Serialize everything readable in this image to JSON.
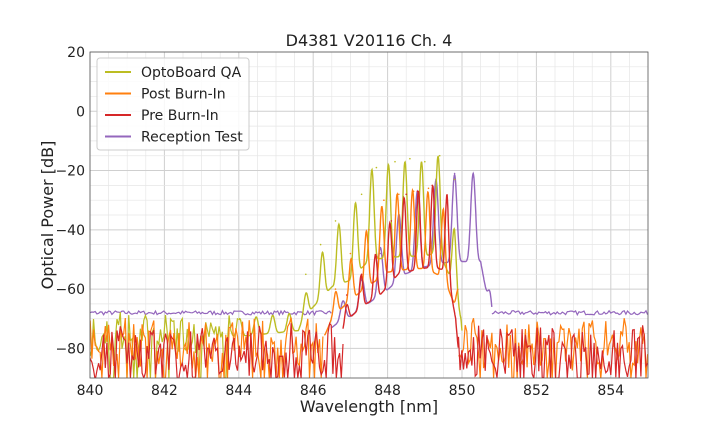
{
  "chart_data": {
    "type": "line",
    "title": "D4381 V20116 Ch. 4",
    "xlabel": "Wavelength [nm]",
    "ylabel": "Optical Power [dB]",
    "xlim": [
      840,
      855
    ],
    "ylim": [
      -90,
      20
    ],
    "xticks": [
      840,
      842,
      844,
      846,
      848,
      850,
      852,
      854
    ],
    "yticks": [
      20,
      0,
      -20,
      -40,
      -60,
      -80
    ],
    "grid": true,
    "legend_position": "top-left",
    "series": [
      {
        "name": "OptoBoard QA",
        "color": "#bcbd22",
        "noise_floor": -70,
        "noise_range": [
          839.6,
          850.0
        ],
        "peaks": [
          [
            845.8,
            -55
          ],
          [
            846.2,
            -45
          ],
          [
            846.6,
            -37
          ],
          [
            847.3,
            -28
          ],
          [
            847.7,
            -19
          ],
          [
            848.2,
            -17
          ],
          [
            848.6,
            -16
          ],
          [
            849.0,
            -17
          ],
          [
            849.4,
            -15
          ],
          [
            849.8,
            -23
          ]
        ],
        "x": [
          840,
          844,
          845.6,
          846.0,
          846.5,
          847.0,
          847.5,
          848.0,
          848.5,
          849.0,
          849.4,
          849.8,
          850.0,
          850.5
        ],
        "y": [
          -70,
          -70,
          -68,
          -55,
          -40,
          -35,
          -20,
          -18,
          -17,
          -17,
          -15,
          -40,
          -68,
          -71
        ]
      },
      {
        "name": "Post Burn-In",
        "color": "#ff7f0e",
        "noise_floor": -72,
        "noise_range": [
          839.6,
          855.0
        ],
        "peaks": [
          [
            846.6,
            -60
          ],
          [
            847.0,
            -48
          ],
          [
            847.5,
            -40
          ],
          [
            847.9,
            -30
          ],
          [
            848.3,
            -28
          ],
          [
            848.7,
            -27
          ],
          [
            849.1,
            -26
          ],
          [
            849.5,
            -35
          ]
        ],
        "x": [
          840,
          846.3,
          846.8,
          847.3,
          848.0,
          848.5,
          849.0,
          849.5,
          849.9,
          850.3
        ],
        "y": [
          -72,
          -70,
          -55,
          -43,
          -29,
          -27,
          -26,
          -33,
          -60,
          -72
        ]
      },
      {
        "name": "Pre Burn-In",
        "color": "#d62728",
        "noise_floor": -74,
        "noise_range": [
          839.6,
          855.0
        ],
        "peaks": [
          [
            846.9,
            -62
          ],
          [
            847.3,
            -55
          ],
          [
            847.7,
            -49
          ],
          [
            848.1,
            -37
          ],
          [
            848.5,
            -28
          ],
          [
            848.8,
            -27
          ],
          [
            849.2,
            -25
          ],
          [
            849.6,
            -30
          ]
        ],
        "x": [
          840,
          846.8,
          847.3,
          847.8,
          848.3,
          848.8,
          849.2,
          849.6,
          849.9,
          850.1
        ],
        "y": [
          -74,
          -68,
          -55,
          -46,
          -30,
          -27,
          -25,
          -28,
          -75,
          -90
        ]
      },
      {
        "name": "Reception Test",
        "color": "#9467bd",
        "noise_floor": -68,
        "noise_range": [
          839.6,
          855.0
        ],
        "peaks": [
          [
            846.8,
            -66
          ],
          [
            847.3,
            -57
          ],
          [
            847.8,
            -48
          ],
          [
            848.3,
            -36
          ],
          [
            848.8,
            -28
          ],
          [
            849.3,
            -23
          ],
          [
            849.8,
            -21
          ],
          [
            850.3,
            -21
          ]
        ],
        "x": [
          840,
          846.5,
          847.0,
          847.5,
          848.0,
          848.5,
          849.0,
          849.5,
          850.0,
          850.5,
          850.8,
          855
        ],
        "y": [
          -68,
          -67,
          -62,
          -52,
          -42,
          -30,
          -25,
          -22,
          -21,
          -21,
          -66,
          -69
        ]
      }
    ]
  }
}
